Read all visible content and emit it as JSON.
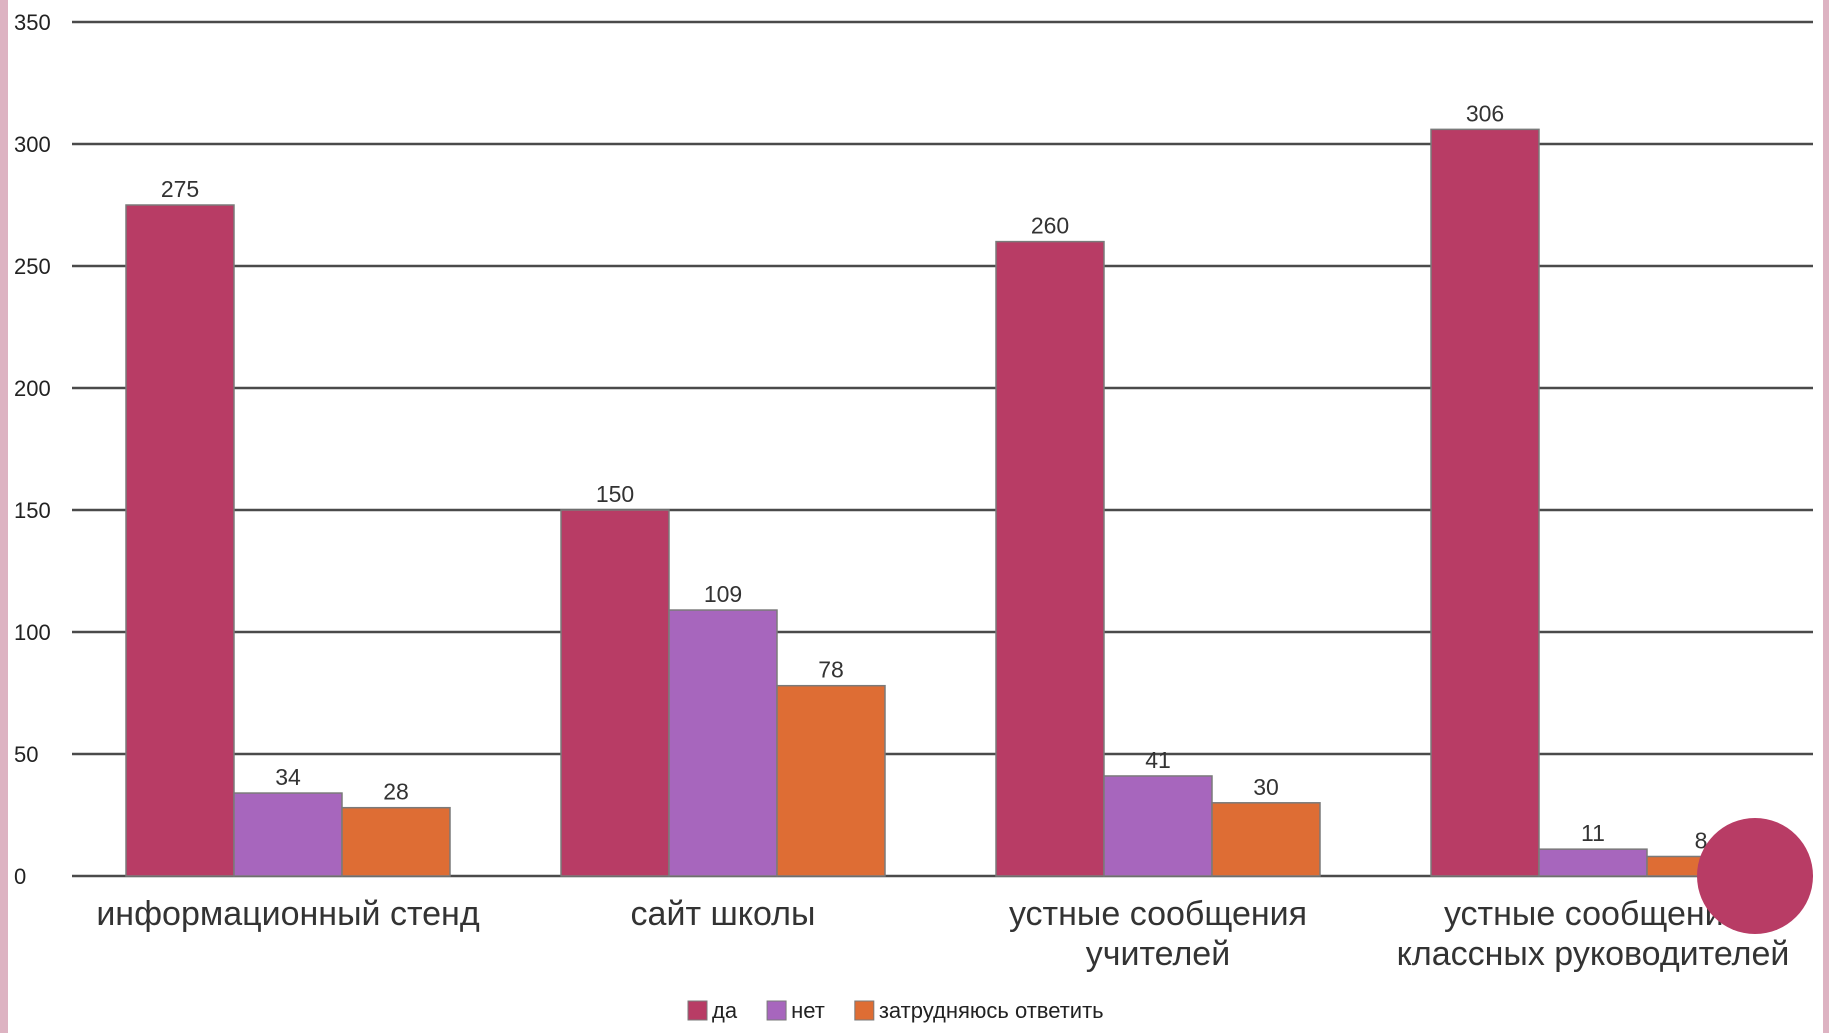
{
  "chart_data": {
    "type": "bar",
    "categories": [
      [
        "информационный стенд"
      ],
      [
        "сайт школы"
      ],
      [
        "устные сообщения",
        "учителей"
      ],
      [
        "устные сообщения",
        "классных руководителей"
      ]
    ],
    "series": [
      {
        "name": "да",
        "color": "#b83c65",
        "values": [
          275,
          150,
          260,
          306
        ]
      },
      {
        "name": "нет",
        "color": "#a766bd",
        "values": [
          34,
          109,
          41,
          11
        ]
      },
      {
        "name": "затрудняюсь ответить",
        "color": "#de6d34",
        "values": [
          28,
          78,
          30,
          8
        ]
      }
    ],
    "ylim": [
      0,
      350
    ],
    "yticks": [
      0,
      50,
      100,
      150,
      200,
      250,
      300,
      350
    ],
    "grid": true,
    "legend": "bottom-center"
  },
  "decoration": {
    "dot_color": "#b83c65"
  }
}
